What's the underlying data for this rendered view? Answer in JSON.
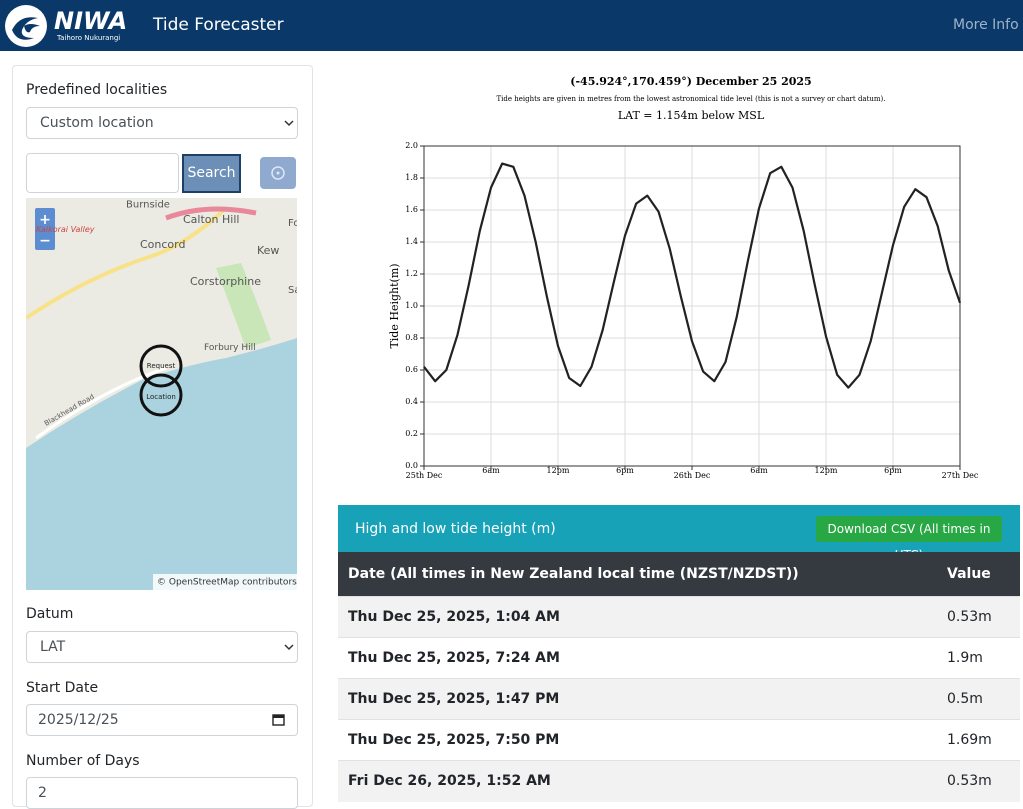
{
  "header": {
    "logo": "NIWA",
    "logo_sub": "Taihoro Nukurangi",
    "title": "Tide Forecaster",
    "link": "More Info"
  },
  "sidebar": {
    "predefined_label": "Predefined localities",
    "predefined_value": "Custom location",
    "search_button": "Search",
    "map": {
      "zoom_in": "+",
      "zoom_out": "−",
      "places": [
        "Burnside",
        "Calton Hill",
        "Kaikorai Valley",
        "Concord",
        "Kew",
        "Corstorphine",
        "Forbury Hill",
        "Blackhead Road",
        "Fo",
        "Sa",
        "Request",
        "Location"
      ],
      "attribution": "© OpenStreetMap contributors."
    },
    "datum_label": "Datum",
    "datum_value": "LAT",
    "start_label": "Start Date",
    "start_value": "2025/12/25",
    "days_label": "Number of Days",
    "days_value": "2"
  },
  "chart_data": {
    "type": "line",
    "title": "(-45.924°,170.459°) December 25 2025",
    "subtitle": "Tide heights are given in metres from the lowest astronomical tide level (this is not a survey or chart datum).",
    "annotation": "LAT = 1.154m below MSL",
    "y_label": "Tide Height(m)",
    "color": "#222222",
    "grid": true,
    "x": [
      0,
      1,
      2,
      3,
      4,
      5,
      6,
      7,
      8,
      9,
      10,
      11,
      12,
      13,
      14,
      15,
      16,
      17,
      18,
      19,
      20,
      21,
      22,
      23,
      24,
      25,
      26,
      27,
      28,
      29,
      30,
      31,
      32,
      33,
      34,
      35,
      36,
      37,
      38,
      39,
      40,
      41,
      42,
      43,
      44,
      45,
      46,
      47,
      48
    ],
    "values": [
      0.62,
      0.53,
      0.6,
      0.82,
      1.13,
      1.47,
      1.74,
      1.89,
      1.87,
      1.69,
      1.4,
      1.06,
      0.75,
      0.55,
      0.5,
      0.62,
      0.85,
      1.15,
      1.44,
      1.64,
      1.69,
      1.59,
      1.36,
      1.06,
      0.78,
      0.59,
      0.53,
      0.65,
      0.93,
      1.28,
      1.61,
      1.83,
      1.87,
      1.74,
      1.47,
      1.13,
      0.81,
      0.57,
      0.49,
      0.57,
      0.78,
      1.08,
      1.38,
      1.62,
      1.73,
      1.68,
      1.5,
      1.22,
      1.02
    ],
    "xlim": [
      0,
      48
    ],
    "xticks": [
      {
        "value": 0,
        "label": "25th Dec"
      },
      {
        "value": 6,
        "label": "6am"
      },
      {
        "value": 12,
        "label": "12pm"
      },
      {
        "value": 18,
        "label": "6pm"
      },
      {
        "value": 24,
        "label": "26th Dec"
      },
      {
        "value": 30,
        "label": "6am"
      },
      {
        "value": 36,
        "label": "12pm"
      },
      {
        "value": 42,
        "label": "6pm"
      },
      {
        "value": 48,
        "label": "27th Dec"
      }
    ],
    "ylim": [
      0,
      2
    ],
    "yticks": [
      {
        "value": 0,
        "label": "0.0"
      },
      0.2,
      0.4,
      0.6,
      0.8,
      {
        "value": 1,
        "label": "1.0"
      },
      1.2,
      1.4,
      1.6,
      1.8,
      {
        "value": 2,
        "label": "2.0"
      }
    ]
  },
  "table": {
    "title": "High and low tide height (m)",
    "download": "Download CSV (All times in UTC)",
    "columns": [
      "Date (All times in New Zealand local time (NZST/NZDST))",
      "Value"
    ],
    "rows": [
      [
        "Thu Dec 25, 2025, 1:04 AM",
        "0.53m"
      ],
      [
        "Thu Dec 25, 2025, 7:24 AM",
        "1.9m"
      ],
      [
        "Thu Dec 25, 2025, 1:47 PM",
        "0.5m"
      ],
      [
        "Thu Dec 25, 2025, 7:50 PM",
        "1.69m"
      ],
      [
        "Fri Dec 26, 2025, 1:52 AM",
        "0.53m"
      ]
    ]
  }
}
